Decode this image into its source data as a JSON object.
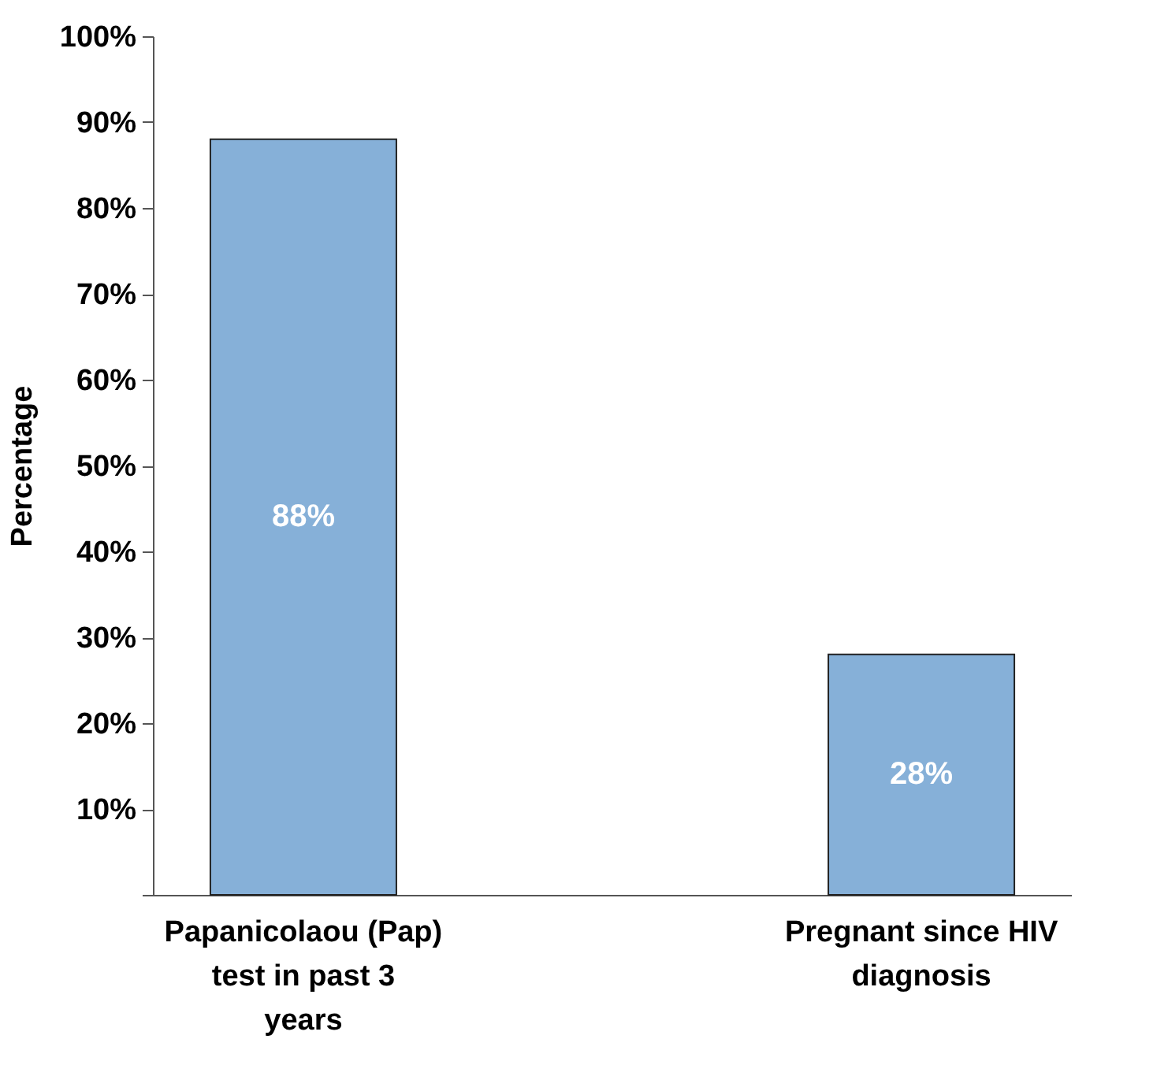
{
  "chart_data": {
    "type": "bar",
    "ylabel": "Percentage",
    "categories": [
      "Papanicolaou (Pap) test in past 3 years",
      "Pregnant since HIV diagnosis"
    ],
    "values": [
      88,
      28
    ],
    "value_labels": [
      "88%",
      "28%"
    ],
    "color": "#86b0d8",
    "ylim": [
      0,
      100
    ],
    "yticks": [
      {
        "value": 0,
        "label": null
      },
      {
        "value": 10,
        "label": "10%"
      },
      {
        "value": 20,
        "label": "20%"
      },
      {
        "value": 30,
        "label": "30%"
      },
      {
        "value": 40,
        "label": "40%"
      },
      {
        "value": 50,
        "label": "50%"
      },
      {
        "value": 60,
        "label": "60%"
      },
      {
        "value": 70,
        "label": "70%"
      },
      {
        "value": 80,
        "label": "80%"
      },
      {
        "value": 90,
        "label": "90%"
      },
      {
        "value": 100,
        "label": "100%"
      }
    ],
    "grid": false
  }
}
